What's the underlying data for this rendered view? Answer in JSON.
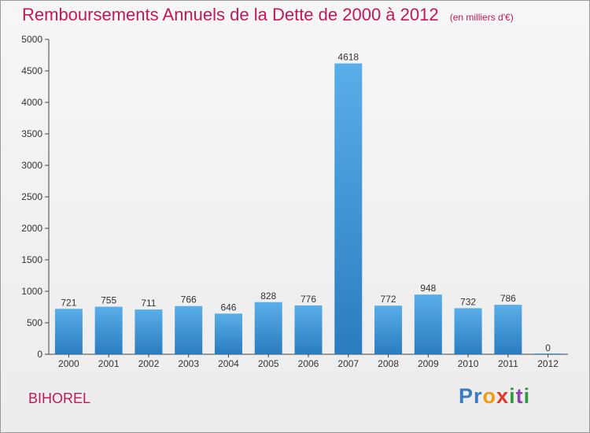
{
  "title": "Remboursements Annuels de la Dette de 2000 à 2012",
  "unit": "(en milliers d'€)",
  "city": "BIHOREL",
  "logo": "Proxiti",
  "colors": {
    "title": "#c2185b",
    "bar_top": "#5aaee8",
    "bar_bottom": "#2a7cc0"
  },
  "chart_data": {
    "type": "bar",
    "title": "Remboursements Annuels de la Dette de 2000 à 2012",
    "xlabel": "",
    "ylabel": "",
    "ylim": [
      0,
      5000
    ],
    "yticks": [
      0,
      500,
      1000,
      1500,
      2000,
      2500,
      3000,
      3500,
      4000,
      4500,
      5000
    ],
    "grid": false,
    "categories": [
      "2000",
      "2001",
      "2002",
      "2003",
      "2004",
      "2005",
      "2006",
      "2007",
      "2008",
      "2009",
      "2010",
      "2011",
      "2012"
    ],
    "values": [
      721,
      755,
      711,
      766,
      646,
      828,
      776,
      4618,
      772,
      948,
      732,
      786,
      0
    ]
  }
}
